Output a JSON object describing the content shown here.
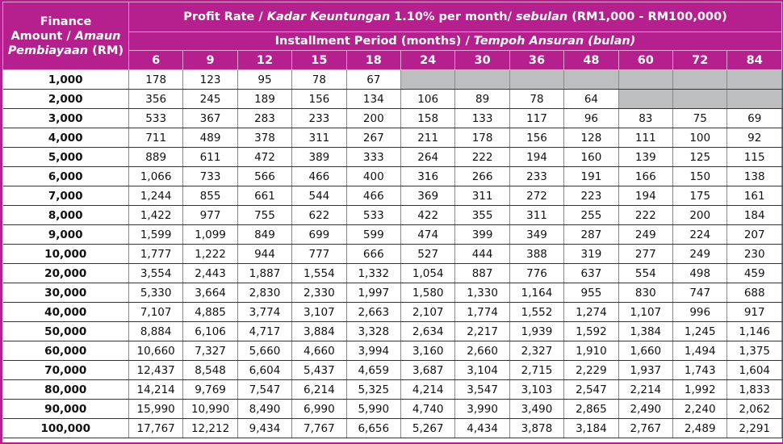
{
  "header": {
    "amount_label_line1": "Finance",
    "amount_label_line2a": "Amount / ",
    "amount_label_line2b": "Amaun",
    "amount_label_line3a": "Pembiayaan",
    "amount_label_line3b": " (RM)",
    "rate_prefix": "Profit Rate / ",
    "rate_italic1": "Kadar Keuntungan",
    "rate_mid": " 1.10% per month/ ",
    "rate_italic2": "sebulan",
    "rate_suffix": " (RM1,000 - RM100,000)",
    "period_prefix": "Installment Period (months) / ",
    "period_italic": "Tempoh Ansuran (bulan)"
  },
  "colors": {
    "header_bg": "#b5208e",
    "header_text": "#ffffff",
    "unavailable_cell": "#bcbec0"
  },
  "periods": [
    "6",
    "9",
    "12",
    "15",
    "18",
    "24",
    "30",
    "36",
    "48",
    "60",
    "72",
    "84"
  ],
  "rows": [
    {
      "amount": "1,000",
      "values": [
        "178",
        "123",
        "95",
        "78",
        "67",
        null,
        null,
        null,
        null,
        null,
        null,
        null
      ]
    },
    {
      "amount": "2,000",
      "values": [
        "356",
        "245",
        "189",
        "156",
        "134",
        "106",
        "89",
        "78",
        "64",
        null,
        null,
        null
      ]
    },
    {
      "amount": "3,000",
      "values": [
        "533",
        "367",
        "283",
        "233",
        "200",
        "158",
        "133",
        "117",
        "96",
        "83",
        "75",
        "69"
      ]
    },
    {
      "amount": "4,000",
      "values": [
        "711",
        "489",
        "378",
        "311",
        "267",
        "211",
        "178",
        "156",
        "128",
        "111",
        "100",
        "92"
      ]
    },
    {
      "amount": "5,000",
      "values": [
        "889",
        "611",
        "472",
        "389",
        "333",
        "264",
        "222",
        "194",
        "160",
        "139",
        "125",
        "115"
      ]
    },
    {
      "amount": "6,000",
      "values": [
        "1,066",
        "733",
        "566",
        "466",
        "400",
        "316",
        "266",
        "233",
        "191",
        "166",
        "150",
        "138"
      ]
    },
    {
      "amount": "7,000",
      "values": [
        "1,244",
        "855",
        "661",
        "544",
        "466",
        "369",
        "311",
        "272",
        "223",
        "194",
        "175",
        "161"
      ]
    },
    {
      "amount": "8,000",
      "values": [
        "1,422",
        "977",
        "755",
        "622",
        "533",
        "422",
        "355",
        "311",
        "255",
        "222",
        "200",
        "184"
      ]
    },
    {
      "amount": "9,000",
      "values": [
        "1,599",
        "1,099",
        "849",
        "699",
        "599",
        "474",
        "399",
        "349",
        "287",
        "249",
        "224",
        "207"
      ]
    },
    {
      "amount": "10,000",
      "values": [
        "1,777",
        "1,222",
        "944",
        "777",
        "666",
        "527",
        "444",
        "388",
        "319",
        "277",
        "249",
        "230"
      ]
    },
    {
      "amount": "20,000",
      "values": [
        "3,554",
        "2,443",
        "1,887",
        "1,554",
        "1,332",
        "1,054",
        "887",
        "776",
        "637",
        "554",
        "498",
        "459"
      ]
    },
    {
      "amount": "30,000",
      "values": [
        "5,330",
        "3,664",
        "2,830",
        "2,330",
        "1,997",
        "1,580",
        "1,330",
        "1,164",
        "955",
        "830",
        "747",
        "688"
      ]
    },
    {
      "amount": "40,000",
      "values": [
        "7,107",
        "4,885",
        "3,774",
        "3,107",
        "2,663",
        "2,107",
        "1,774",
        "1,552",
        "1,274",
        "1,107",
        "996",
        "917"
      ]
    },
    {
      "amount": "50,000",
      "values": [
        "8,884",
        "6,106",
        "4,717",
        "3,884",
        "3,328",
        "2,634",
        "2,217",
        "1,939",
        "1,592",
        "1,384",
        "1,245",
        "1,146"
      ]
    },
    {
      "amount": "60,000",
      "values": [
        "10,660",
        "7,327",
        "5,660",
        "4,660",
        "3,994",
        "3,160",
        "2,660",
        "2,327",
        "1,910",
        "1,660",
        "1,494",
        "1,375"
      ]
    },
    {
      "amount": "70,000",
      "values": [
        "12,437",
        "8,548",
        "6,604",
        "5,437",
        "4,659",
        "3,687",
        "3,104",
        "2,715",
        "2,229",
        "1,937",
        "1,743",
        "1,604"
      ]
    },
    {
      "amount": "80,000",
      "values": [
        "14,214",
        "9,769",
        "7,547",
        "6,214",
        "5,325",
        "4,214",
        "3,547",
        "3,103",
        "2,547",
        "2,214",
        "1,992",
        "1,833"
      ]
    },
    {
      "amount": "90,000",
      "values": [
        "15,990",
        "10,990",
        "8,490",
        "6,990",
        "5,990",
        "4,740",
        "3,990",
        "3,490",
        "2,865",
        "2,490",
        "2,240",
        "2,062"
      ]
    },
    {
      "amount": "100,000",
      "values": [
        "17,767",
        "12,212",
        "9,434",
        "7,767",
        "6,656",
        "5,267",
        "4,434",
        "3,878",
        "3,184",
        "2,767",
        "2,489",
        "2,291"
      ]
    }
  ]
}
